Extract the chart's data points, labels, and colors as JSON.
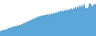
{
  "values": [
    55,
    53,
    57,
    54,
    58,
    55,
    59,
    57,
    61,
    58,
    63,
    60,
    64,
    62,
    65,
    63,
    66,
    64,
    67,
    65,
    69,
    67,
    71,
    69,
    73,
    71,
    75,
    73,
    77,
    75,
    79,
    77,
    81,
    79,
    83,
    81,
    85,
    82,
    86,
    84,
    87,
    85,
    88,
    86,
    89,
    85,
    90,
    86,
    91,
    86,
    92,
    88,
    93,
    88,
    95,
    90,
    96,
    91,
    97,
    91,
    98,
    92,
    99,
    93,
    100,
    94,
    101,
    95,
    102,
    96,
    104,
    97,
    105,
    98,
    107,
    99,
    108,
    100,
    110,
    99,
    101,
    100,
    102,
    111,
    109,
    106,
    103,
    109,
    106,
    111
  ],
  "line_color": "#4393c9",
  "fill_color": "#5ba8d8",
  "fill_alpha": 1.0,
  "background_color": "#ffffff",
  "ylim_min": 45,
  "ylim_max": 118
}
